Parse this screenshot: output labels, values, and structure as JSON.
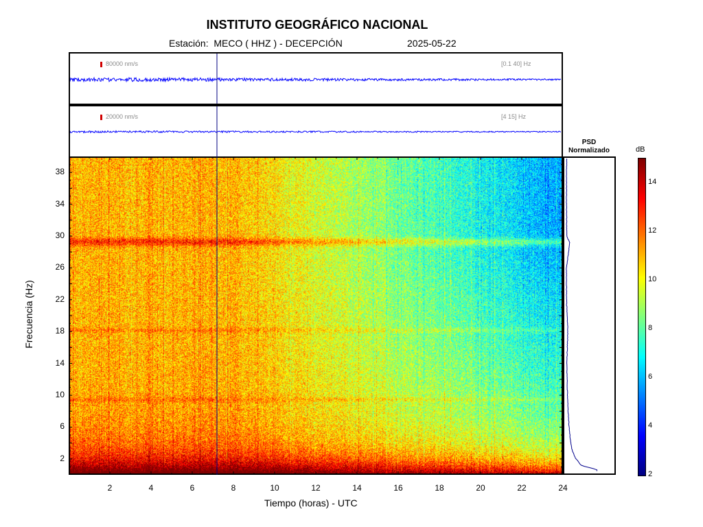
{
  "header": {
    "title": "INSTITUTO GEOGRÁFICO NACIONAL",
    "station_label": "Estación:  MECO ( HHZ ) - DECEPCIÓN",
    "date": "2025-05-22"
  },
  "trace_panels": [
    {
      "scale": "80000 nm/s",
      "band": "[0.1 40] Hz"
    },
    {
      "scale": "20000 nm/s",
      "band": "[4 15] Hz"
    }
  ],
  "psd_panel": {
    "title_line1": "PSD",
    "title_line2": "Normalizado"
  },
  "colorbar": {
    "unit": "dB",
    "range": [
      2,
      15
    ],
    "ticks": [
      2,
      4,
      6,
      8,
      10,
      12,
      14
    ]
  },
  "colors": {
    "trace": "#0000ff",
    "psd_line": "#00008b",
    "marker": "#000080"
  },
  "chart_data": {
    "type": "heatmap",
    "xlabel": "Tiempo (horas) - UTC",
    "ylabel": "Frecuencia  (Hz)",
    "xlim": [
      0,
      24
    ],
    "ylim": [
      0,
      40
    ],
    "xticks": [
      2,
      4,
      6,
      8,
      10,
      12,
      14,
      16,
      18,
      20,
      22,
      24
    ],
    "yticks": [
      2,
      6,
      10,
      14,
      18,
      22,
      26,
      30,
      34,
      38
    ],
    "marker_time": 7.2,
    "spectral_lines_hz": [
      29.3,
      18.2,
      9.5
    ],
    "psd_normalized": {
      "freqs": [
        0.5,
        1,
        2,
        3,
        4,
        6,
        8,
        10,
        14,
        18,
        22,
        26,
        29.3,
        30,
        34,
        38,
        40
      ],
      "values": [
        1.0,
        0.5,
        0.3,
        0.2,
        0.15,
        0.1,
        0.07,
        0.05,
        0.03,
        0.06,
        0.02,
        0.02,
        0.12,
        0.03,
        0.02,
        0.02,
        0.03
      ]
    }
  }
}
